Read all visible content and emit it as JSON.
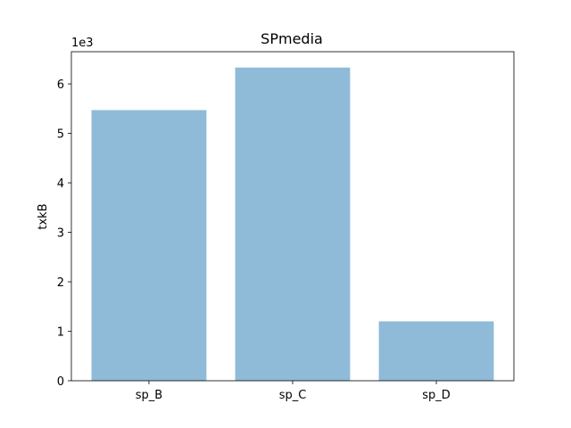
{
  "chart_data": {
    "type": "bar",
    "title": "SPmedia",
    "xlabel": "",
    "ylabel": "txkB",
    "y_offset_text": "1e3",
    "categories": [
      "sp_B",
      "sp_C",
      "sp_D"
    ],
    "values": [
      5.47,
      6.33,
      1.2
    ],
    "value_scale": 1000,
    "ylim": [
      0,
      6.65
    ],
    "yticks": [
      0,
      1,
      2,
      3,
      4,
      5,
      6
    ],
    "grid": false,
    "legend": "none",
    "bar_color": "#8fbbd9"
  }
}
